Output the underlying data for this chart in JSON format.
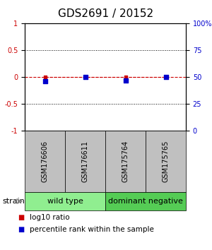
{
  "title": "GDS2691 / 20152",
  "samples": [
    "GSM176606",
    "GSM176611",
    "GSM175764",
    "GSM175765"
  ],
  "groups": [
    {
      "name": "wild type",
      "color": "#90EE90",
      "indices": [
        0,
        1
      ]
    },
    {
      "name": "dominant negative",
      "color": "#55CC55",
      "indices": [
        2,
        3
      ]
    }
  ],
  "log10_ratio": [
    0.0,
    0.0,
    0.0,
    0.0
  ],
  "percentile_rank": [
    46,
    50,
    47,
    50
  ],
  "ylim_left": [
    -1,
    1
  ],
  "ylim_right": [
    0,
    100
  ],
  "yticks_left": [
    -1,
    -0.5,
    0,
    0.5,
    1
  ],
  "yticks_right": [
    0,
    25,
    50,
    75,
    100
  ],
  "ytick_labels_left": [
    "-1",
    "-0.5",
    "0",
    "0.5",
    "1"
  ],
  "ytick_labels_right": [
    "0",
    "25",
    "50",
    "75",
    "100%"
  ],
  "log10_color": "#CC0000",
  "percentile_color": "#0000CC",
  "bg_color": "#FFFFFF",
  "label_area_color": "#C0C0C0",
  "strain_label": "strain",
  "legend_ratio": "log10 ratio",
  "legend_percentile": "percentile rank within the sample",
  "title_fontsize": 11,
  "tick_fontsize": 7,
  "sample_fontsize": 7,
  "group_fontsize": 8,
  "legend_fontsize": 7.5
}
